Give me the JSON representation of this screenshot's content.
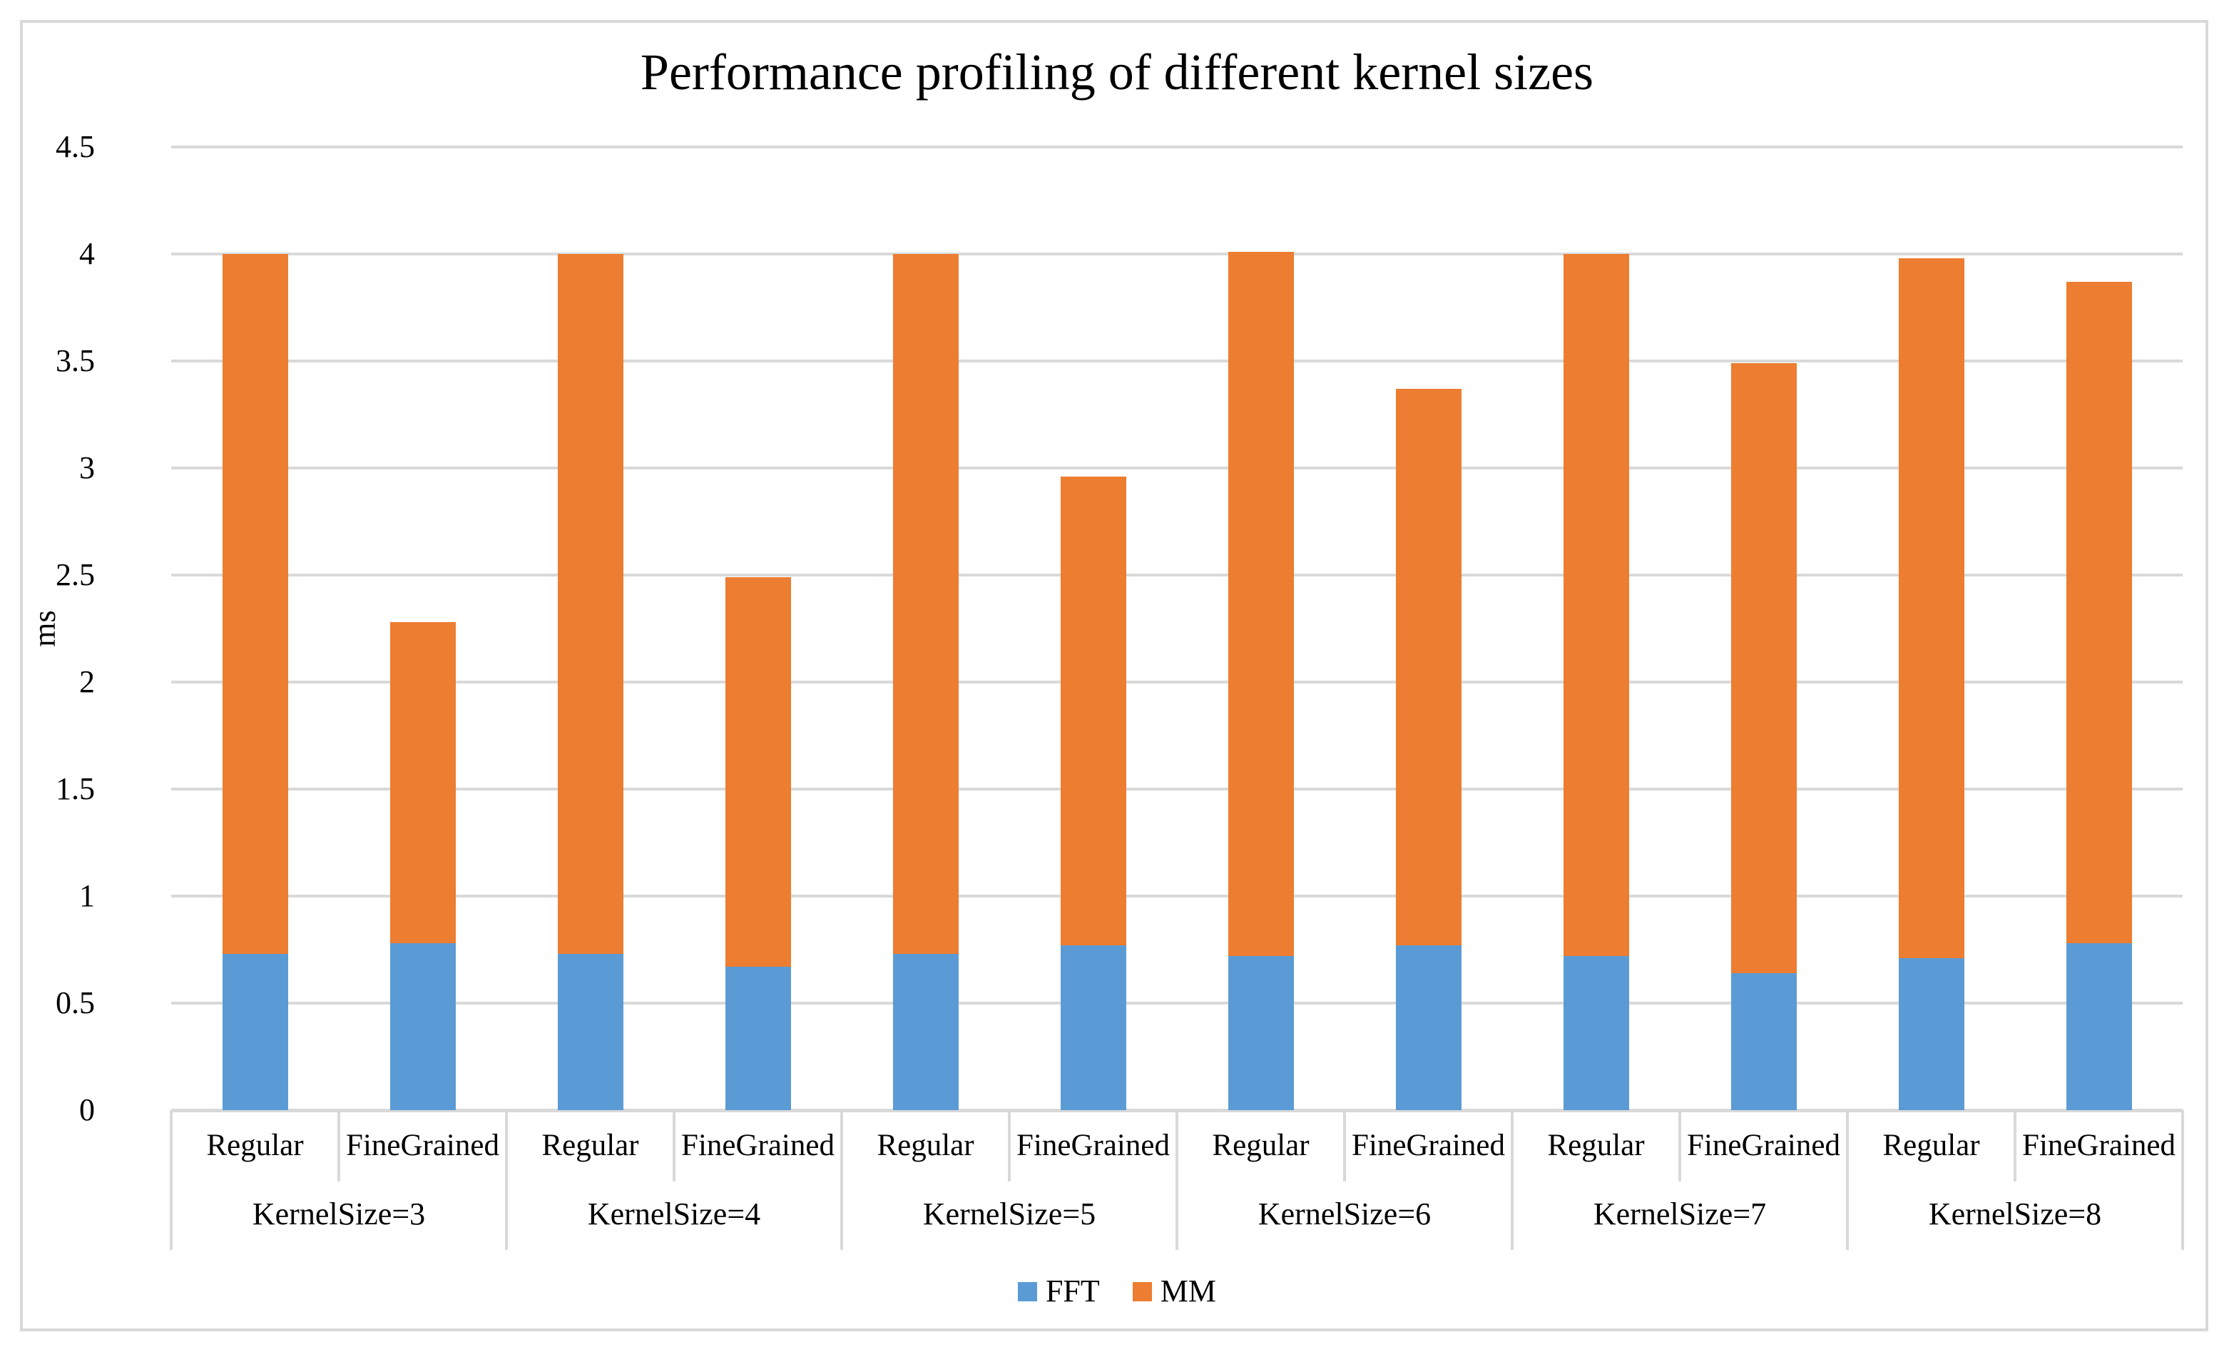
{
  "chart": {
    "title": "Performance profiling of different kernel sizes",
    "y_axis_title": "ms",
    "colors": {
      "fft": "#5B9BD5",
      "mm": "#ED7D31",
      "gridline": "#D9D9D9",
      "frame_border": "#D9D9D9",
      "text": "#000000"
    },
    "legend": {
      "position": "bottom",
      "items": [
        {
          "label": "FFT",
          "color": "#5B9BD5"
        },
        {
          "label": "MM",
          "color": "#ED7D31"
        }
      ]
    }
  },
  "chart_data": {
    "type": "bar",
    "stacked": true,
    "title": "Performance profiling of different kernel sizes",
    "xlabel": "",
    "ylabel": "ms",
    "ylim": [
      0,
      4.5
    ],
    "ytick_step": 0.5,
    "ytick_labels": [
      "0",
      "0.5",
      "1",
      "1.5",
      "2",
      "2.5",
      "3",
      "3.5",
      "4",
      "4.5"
    ],
    "grid": true,
    "legend_position": "bottom",
    "groups": [
      "KernelSize=3",
      "KernelSize=4",
      "KernelSize=5",
      "KernelSize=6",
      "KernelSize=7",
      "KernelSize=8"
    ],
    "subcategories": [
      "Regular",
      "FineGrained"
    ],
    "series": [
      {
        "name": "FFT",
        "color": "#5B9BD5",
        "values": [
          0.73,
          0.78,
          0.73,
          0.67,
          0.73,
          0.77,
          0.72,
          0.77,
          0.72,
          0.64,
          0.71,
          0.78
        ]
      },
      {
        "name": "MM",
        "color": "#ED7D31",
        "values": [
          3.27,
          1.5,
          3.27,
          1.82,
          3.27,
          2.19,
          3.29,
          2.6,
          3.28,
          2.85,
          3.27,
          3.09
        ]
      }
    ],
    "stack_totals": [
      4.0,
      2.28,
      4.0,
      2.49,
      4.0,
      2.96,
      4.01,
      3.37,
      4.0,
      3.49,
      3.98,
      3.87
    ]
  }
}
